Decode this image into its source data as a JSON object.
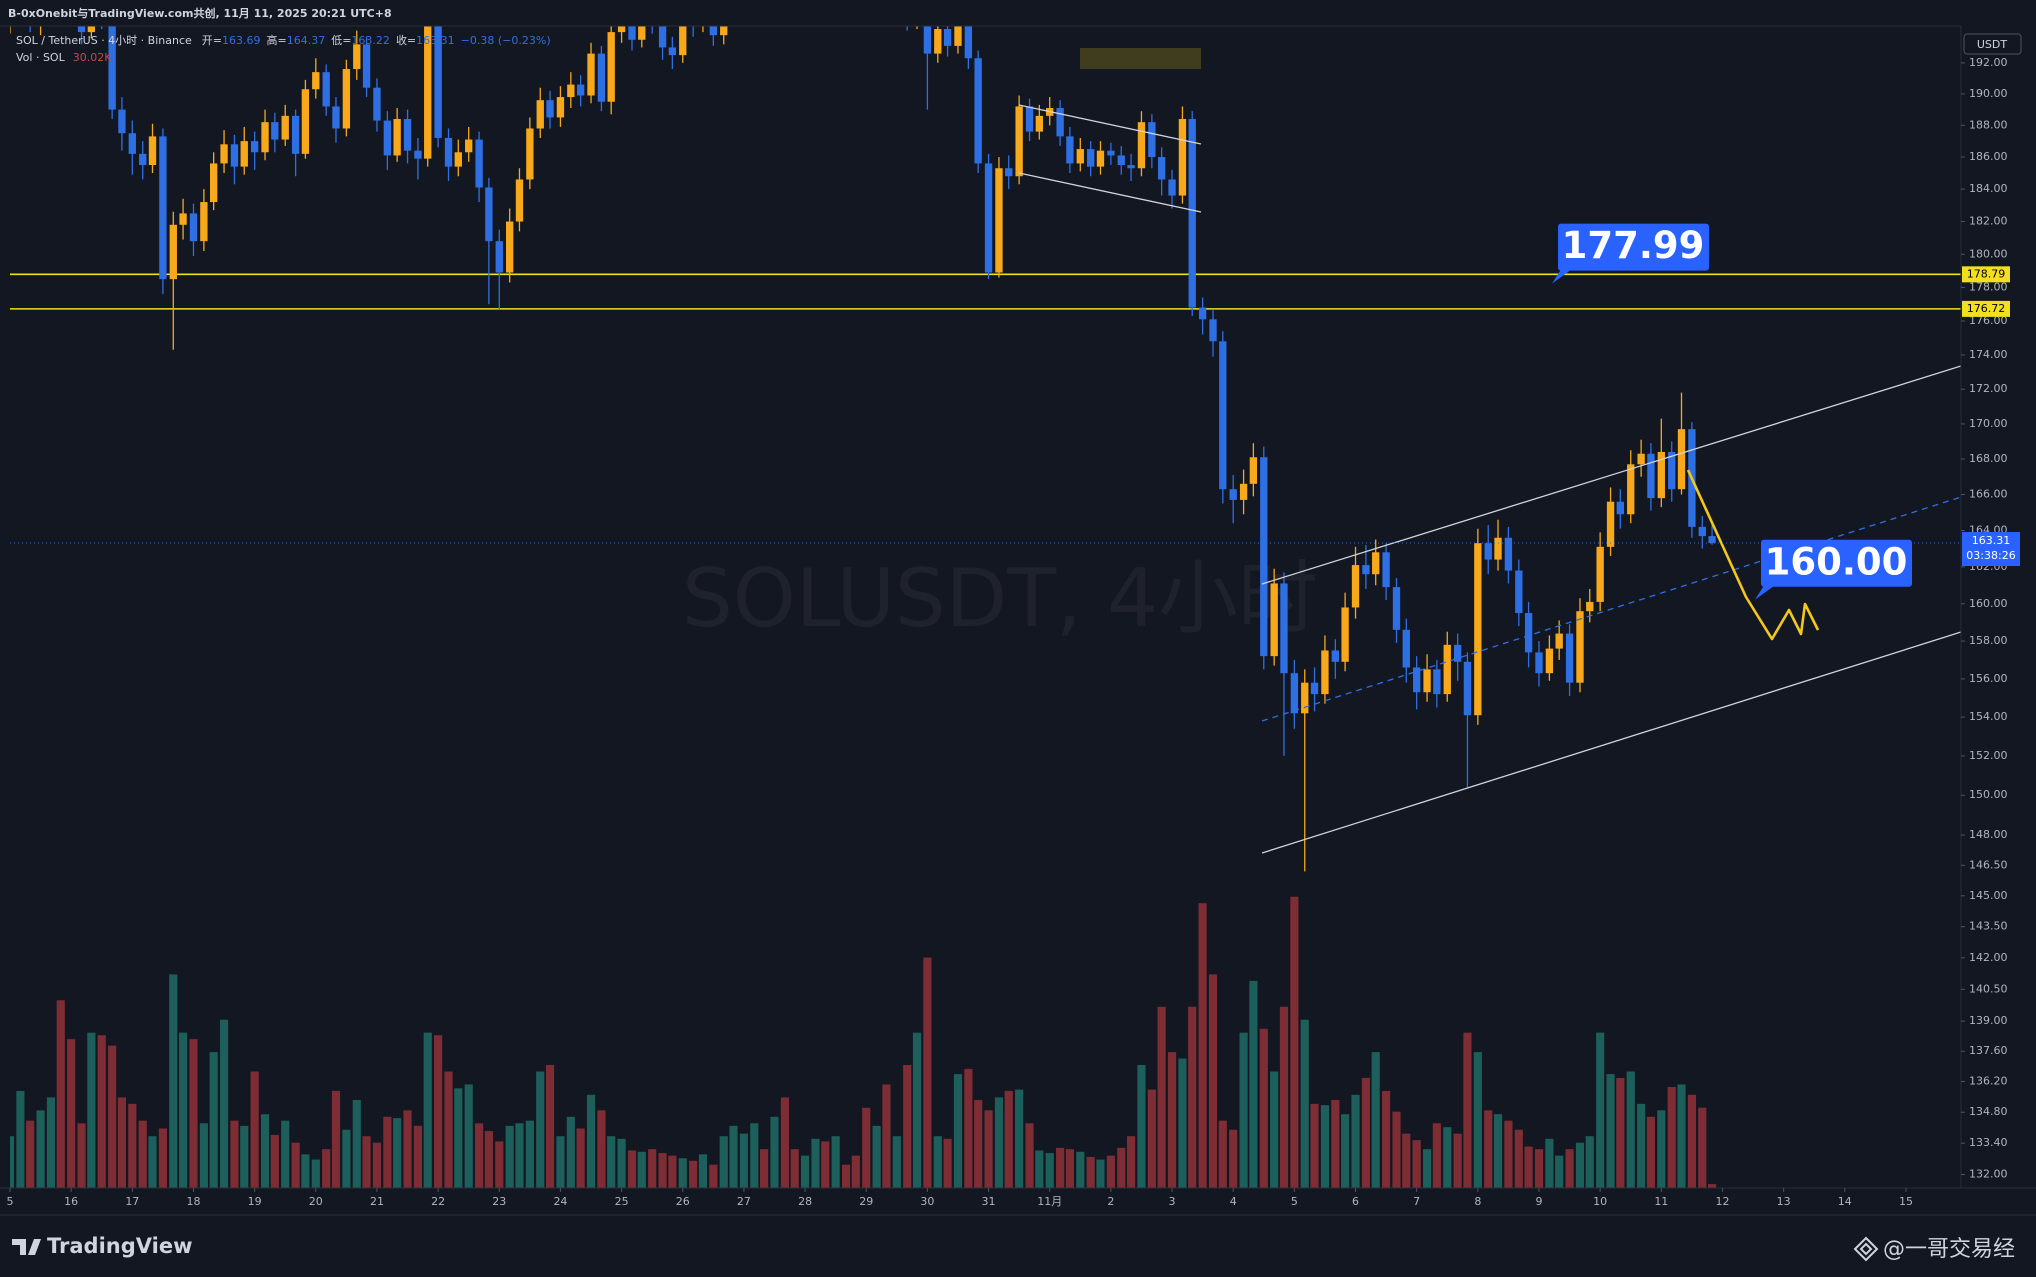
{
  "header": {
    "attribution": "B-0xOnebit与TradingView.com共创, 11月 11, 2025 20:21 UTC+8",
    "symbol": "SOL / TetherUS · 4小时 · Binance",
    "ohlc": [
      "开=",
      "163.69",
      "高=",
      "164.37",
      "低=",
      "163.22",
      "收=",
      "163.31",
      "−0.38 (−0.23%)"
    ],
    "volume_legend": "Vol · SOL",
    "volume_last": "30.02K"
  },
  "footer": {
    "brand": "TradingView",
    "author": "@一哥交易经"
  },
  "chart_data": {
    "type": "candlestick",
    "log_scale": true,
    "grid": false,
    "currency": "USDT",
    "watermark": "SOLUSDT, 4小时",
    "countdown": "03:38:26",
    "up_color": "#f7a81b",
    "down_color": "#2f6fe4",
    "volume_up_color": "#1d5f5b",
    "volume_down_color": "#7e2d35",
    "level_color": "#f2e01e",
    "levels": [
      178.79,
      176.72
    ],
    "annotations": [
      {
        "value": 177.99,
        "label": "177.99"
      },
      {
        "value": 160,
        "label": "160.00"
      }
    ],
    "last_price": 163.31,
    "ylim": [
      131.4,
      194.4
    ],
    "yticks": [
      {
        "value": 192,
        "label": "192.00"
      },
      {
        "value": 190,
        "label": "190.00"
      },
      {
        "value": 188,
        "label": "188.00"
      },
      {
        "value": 186,
        "label": "186.00"
      },
      {
        "value": 184,
        "label": "184.00"
      },
      {
        "value": 182,
        "label": "182.00"
      },
      {
        "value": 180,
        "label": "180.00"
      },
      {
        "value": 178,
        "label": "178.00"
      },
      {
        "value": 176,
        "label": "176.00"
      },
      {
        "value": 174,
        "label": "174.00"
      },
      {
        "value": 172,
        "label": "172.00"
      },
      {
        "value": 170,
        "label": "170.00"
      },
      {
        "value": 168,
        "label": "168.00"
      },
      {
        "value": 166,
        "label": "166.00"
      },
      {
        "value": 164,
        "label": "164.00"
      },
      {
        "value": 162,
        "label": "162.00"
      },
      {
        "value": 160,
        "label": "160.00"
      },
      {
        "value": 158,
        "label": "158.00"
      },
      {
        "value": 156,
        "label": "156.00"
      },
      {
        "value": 154,
        "label": "154.00"
      },
      {
        "value": 152,
        "label": "152.00"
      },
      {
        "value": 150,
        "label": "150.00"
      },
      {
        "value": 148,
        "label": "148.00"
      },
      {
        "value": 146.5,
        "label": "146.50"
      },
      {
        "value": 145,
        "label": "145.00"
      },
      {
        "value": 143.5,
        "label": "143.50"
      },
      {
        "value": 142,
        "label": "142.00"
      },
      {
        "value": 140.5,
        "label": "140.50"
      },
      {
        "value": 139,
        "label": "139.00"
      },
      {
        "value": 137.6,
        "label": "137.60"
      },
      {
        "value": 136.2,
        "label": "136.20"
      },
      {
        "value": 134.8,
        "label": "134.80"
      },
      {
        "value": 133.4,
        "label": "133.40"
      },
      {
        "value": 132,
        "label": "132.00"
      }
    ],
    "xlim": [
      0,
      31.9
    ],
    "xticks": [
      {
        "value": 0,
        "label": "5"
      },
      {
        "value": 1,
        "label": "16"
      },
      {
        "value": 2,
        "label": "17"
      },
      {
        "value": 3,
        "label": "18"
      },
      {
        "value": 4,
        "label": "19"
      },
      {
        "value": 5,
        "label": "20"
      },
      {
        "value": 6,
        "label": "21"
      },
      {
        "value": 7,
        "label": "22"
      },
      {
        "value": 8,
        "label": "23"
      },
      {
        "value": 9,
        "label": "24"
      },
      {
        "value": 10,
        "label": "25"
      },
      {
        "value": 11,
        "label": "26"
      },
      {
        "value": 12,
        "label": "27"
      },
      {
        "value": 13,
        "label": "28"
      },
      {
        "value": 14,
        "label": "29"
      },
      {
        "value": 15,
        "label": "30"
      },
      {
        "value": 16,
        "label": "31"
      },
      {
        "value": 17,
        "label": "11月"
      },
      {
        "value": 18,
        "label": "2"
      },
      {
        "value": 19,
        "label": "3"
      },
      {
        "value": 20,
        "label": "4"
      },
      {
        "value": 21,
        "label": "5"
      },
      {
        "value": 22,
        "label": "6"
      },
      {
        "value": 23,
        "label": "7"
      },
      {
        "value": 24,
        "label": "8"
      },
      {
        "value": 25,
        "label": "9"
      },
      {
        "value": 26,
        "label": "10"
      },
      {
        "value": 27,
        "label": "11"
      },
      {
        "value": 28,
        "label": "12"
      },
      {
        "value": 29,
        "label": "13"
      },
      {
        "value": 30,
        "label": "14"
      },
      {
        "value": 31,
        "label": "15"
      }
    ],
    "x": [
      0,
      0.17,
      0.33,
      0.5,
      0.67,
      0.83,
      1,
      1.17,
      1.33,
      1.5,
      1.67,
      1.83,
      2,
      2.17,
      2.33,
      2.5,
      2.67,
      2.83,
      3,
      3.17,
      3.33,
      3.5,
      3.67,
      3.83,
      4,
      4.17,
      4.33,
      4.5,
      4.67,
      4.83,
      5,
      5.17,
      5.33,
      5.5,
      5.67,
      5.83,
      6,
      6.17,
      6.33,
      6.5,
      6.67,
      6.83,
      7,
      7.17,
      7.33,
      7.5,
      7.67,
      7.83,
      8,
      8.17,
      8.33,
      8.5,
      8.67,
      8.83,
      9,
      9.17,
      9.33,
      9.5,
      9.67,
      9.83,
      10,
      10.17,
      10.33,
      10.5,
      10.67,
      10.83,
      11,
      11.17,
      11.33,
      11.5,
      11.67,
      11.83,
      12,
      12.17,
      12.33,
      12.5,
      12.67,
      12.83,
      13,
      13.17,
      13.33,
      13.5,
      13.67,
      13.83,
      14,
      14.17,
      14.33,
      14.5,
      14.67,
      14.83,
      15,
      15.17,
      15.33,
      15.5,
      15.67,
      15.83,
      16,
      16.17,
      16.33,
      16.5,
      16.67,
      16.83,
      17,
      17.17,
      17.33,
      17.5,
      17.67,
      17.83,
      18,
      18.17,
      18.33,
      18.5,
      18.67,
      18.83,
      19,
      19.17,
      19.33,
      19.5,
      19.67,
      19.83,
      20,
      20.17,
      20.33,
      20.5,
      20.67,
      20.83,
      21,
      21.17,
      21.33,
      21.5,
      21.67,
      21.83,
      22,
      22.17,
      22.33,
      22.5,
      22.67,
      22.83,
      23,
      23.17,
      23.33,
      23.5,
      23.67,
      23.83,
      24,
      24.17,
      24.33,
      24.5,
      24.67,
      24.83,
      25,
      25.17,
      25.33,
      25.5,
      25.67,
      25.83,
      26,
      26.17,
      26.33,
      26.5,
      26.67,
      26.83,
      27,
      27.17,
      27.33,
      27.5,
      27.67,
      27.83
    ],
    "open": [
      194.5,
      195,
      196,
      194.5,
      195.5,
      197,
      196,
      195,
      194,
      196,
      195,
      189,
      187.5,
      186.2,
      185.5,
      187.3,
      178.5,
      181.8,
      182.5,
      180.8,
      183.2,
      185.6,
      186.8,
      185.4,
      187,
      186.3,
      188.2,
      187.1,
      188.6,
      186.2,
      190.3,
      191.4,
      189.2,
      187.8,
      191.6,
      193.2,
      190.4,
      188.3,
      186.1,
      188.4,
      186.4,
      185.9,
      194.5,
      187.2,
      185.4,
      186.3,
      187.1,
      184.1,
      180.8,
      178.9,
      182,
      184.6,
      187.8,
      189.6,
      188.5,
      189.8,
      190.6,
      189.9,
      192.6,
      189.5,
      194,
      195,
      193.5,
      195.5,
      194.5,
      193,
      192.5,
      195.5,
      194.5,
      196,
      193.8,
      195,
      196.5,
      197,
      198,
      197.5,
      199,
      198,
      197,
      198,
      199,
      197.5,
      198.5,
      197,
      196,
      195.2,
      195.8,
      195.4,
      196,
      194.8,
      195.5,
      192.6,
      194.2,
      193.1,
      195,
      192.3,
      185.6,
      178.9,
      185.3,
      184.8,
      189.2,
      187.6,
      188.6,
      189.1,
      187.3,
      185.6,
      186.5,
      185.4,
      186.4,
      186.1,
      185.5,
      185.3,
      188.2,
      186,
      184.6,
      183.6,
      188.4,
      176.8,
      176.1,
      174.8,
      166.3,
      165.7,
      166.6,
      168.1,
      157.2,
      161.1,
      156.3,
      154.2,
      155.8,
      155.2,
      157.5,
      156.9,
      159.8,
      162.1,
      161.6,
      162.8,
      160.9,
      158.6,
      156.6,
      155.3,
      156.5,
      155.2,
      157.8,
      156.9,
      154.1,
      163.3,
      162.4,
      163.6,
      161.8,
      159.5,
      157.4,
      156.3,
      157.6,
      158.4,
      155.8,
      159.6,
      160.1,
      163.1,
      165.6,
      164.9,
      167.7,
      168.3,
      165.8,
      168.4,
      166.3,
      169.7,
      164.2,
      163.69
    ],
    "high": [
      195.8,
      196.7,
      196.4,
      196.1,
      197.6,
      197.8,
      196.6,
      195.7,
      196.8,
      196.5,
      195.6,
      189.8,
      188.3,
      187,
      188.1,
      187.8,
      182.6,
      183.4,
      183.1,
      184,
      186.3,
      187.7,
      187.4,
      187.9,
      187.6,
      189,
      188.8,
      189.3,
      189,
      190.9,
      192.3,
      191.9,
      189.8,
      192.2,
      194.1,
      193.7,
      191,
      188.9,
      189.1,
      189,
      187.2,
      195.3,
      195,
      187.8,
      187.1,
      187.9,
      187.6,
      184.7,
      181.5,
      182.8,
      185.3,
      188.5,
      190.4,
      190.2,
      190.5,
      191.4,
      191.2,
      193.3,
      193.1,
      194.8,
      195.8,
      195.6,
      196.2,
      196.1,
      195,
      193.7,
      196.1,
      196,
      196.8,
      196.5,
      195.7,
      197.2,
      197.9,
      198.8,
      198.6,
      199.7,
      199.6,
      198.5,
      198.7,
      199.8,
      199.5,
      199.2,
      199,
      197.6,
      196.7,
      196.5,
      196.4,
      196.8,
      196.5,
      196.2,
      196,
      195,
      194.8,
      195.8,
      195.5,
      192.8,
      186.2,
      186,
      186.1,
      189.9,
      189.7,
      189.3,
      189.8,
      189.6,
      187.9,
      187.2,
      187,
      187,
      186.9,
      186.7,
      186.2,
      188.9,
      188.7,
      186.6,
      185.2,
      189.2,
      188.9,
      177.4,
      176.7,
      175.4,
      167.1,
      167.4,
      168.9,
      168.7,
      161.9,
      161.7,
      157,
      156.5,
      156.6,
      158.3,
      158.1,
      160.6,
      163.1,
      163.2,
      163.5,
      163.3,
      161.4,
      159.2,
      157.2,
      157.3,
      157,
      158.5,
      158.4,
      157.4,
      164.1,
      164.3,
      164.6,
      164.2,
      162.4,
      160.1,
      158,
      158.3,
      159.1,
      158.9,
      160.3,
      160.8,
      163.9,
      166.4,
      166.3,
      168.5,
      169.1,
      168.9,
      170.3,
      169,
      171.8,
      170.1,
      164.8,
      164.37
    ],
    "low": [
      193.9,
      194.6,
      194,
      193.8,
      195,
      195.4,
      194.4,
      193.2,
      193.6,
      194.2,
      188.4,
      186.4,
      184.9,
      184.6,
      185,
      177.6,
      174.3,
      180.9,
      179.9,
      180.2,
      182.7,
      185,
      184.3,
      184.9,
      185.2,
      185.8,
      186.3,
      186.7,
      184.8,
      185.9,
      189.7,
      188.6,
      186.9,
      187.3,
      190.9,
      189.8,
      187.6,
      185.2,
      185.7,
      185.6,
      184.6,
      185.4,
      186.6,
      184.5,
      184.8,
      185.7,
      183.2,
      177,
      176.7,
      178.3,
      181.4,
      184,
      187.2,
      187.8,
      187.9,
      189.1,
      189.2,
      189.4,
      188.9,
      188.7,
      193.3,
      192.8,
      193,
      193.9,
      192.2,
      191.6,
      192,
      193.7,
      194,
      193.1,
      193.2,
      194.5,
      195.9,
      196.4,
      196.8,
      197,
      197.4,
      196.3,
      196.5,
      197.6,
      196.9,
      197,
      196.4,
      195.3,
      194.6,
      194.7,
      194.8,
      194.9,
      194.1,
      194.2,
      189,
      192,
      192.4,
      192.6,
      191.6,
      185,
      178.5,
      178.6,
      184,
      184.3,
      187,
      187.1,
      188,
      186.7,
      185,
      185.1,
      184.8,
      184.9,
      185.5,
      184.9,
      184.5,
      184.8,
      185.3,
      183.6,
      182.8,
      183.1,
      176.3,
      175.2,
      173.9,
      165.5,
      164.4,
      164.9,
      165.9,
      156.5,
      156.7,
      152,
      153.4,
      146.2,
      154.3,
      154.7,
      156,
      156.4,
      159.2,
      160.8,
      161,
      160.2,
      157.9,
      155.8,
      154.4,
      154.8,
      154.5,
      154.8,
      155.9,
      150.4,
      153.6,
      161.6,
      161.8,
      161.1,
      158.8,
      156.6,
      155.6,
      155.9,
      157,
      155.1,
      155.3,
      159,
      159.6,
      162.6,
      164.1,
      164.4,
      167,
      165.1,
      165.3,
      165.6,
      166,
      163.6,
      163,
      163.22
    ],
    "close": [
      195,
      196,
      194.5,
      195.5,
      197,
      196,
      195,
      194,
      196,
      195,
      189,
      187.5,
      186.2,
      185.5,
      187.3,
      178.5,
      181.8,
      182.5,
      180.8,
      183.2,
      185.6,
      186.8,
      185.4,
      187,
      186.3,
      188.2,
      187.1,
      188.6,
      186.2,
      190.3,
      191.4,
      189.2,
      187.8,
      191.6,
      193.2,
      190.4,
      188.3,
      186.1,
      188.4,
      186.4,
      185.9,
      194.5,
      187.2,
      185.4,
      186.3,
      187.1,
      184.1,
      180.8,
      178.9,
      182,
      184.6,
      187.8,
      189.6,
      188.5,
      189.8,
      190.6,
      189.9,
      192.6,
      189.5,
      194,
      195,
      193.5,
      195.5,
      194.5,
      193,
      192.5,
      195.5,
      194.5,
      196,
      193.8,
      195,
      196.5,
      197,
      198,
      197.5,
      199,
      198,
      197,
      198,
      199,
      197.5,
      198.5,
      197,
      196,
      195.2,
      195.8,
      195.4,
      196,
      194.8,
      195.5,
      192.6,
      194.2,
      193.1,
      195,
      192.3,
      185.6,
      178.9,
      185.3,
      184.8,
      189.2,
      187.6,
      188.6,
      189.1,
      187.3,
      185.6,
      186.5,
      185.4,
      186.4,
      186.1,
      185.5,
      185.3,
      188.2,
      186,
      184.6,
      183.6,
      188.4,
      176.8,
      176.1,
      174.8,
      166.3,
      165.7,
      166.6,
      168.1,
      157.2,
      161.1,
      156.3,
      154.2,
      155.8,
      155.2,
      157.5,
      156.9,
      159.8,
      162.1,
      161.6,
      162.8,
      160.9,
      158.6,
      156.6,
      155.3,
      156.5,
      155.2,
      157.8,
      156.9,
      154.1,
      163.3,
      162.4,
      163.6,
      161.8,
      159.5,
      157.4,
      156.3,
      157.6,
      158.4,
      155.8,
      159.6,
      160.1,
      163.1,
      165.6,
      164.9,
      167.7,
      168.3,
      165.8,
      168.4,
      166.3,
      169.7,
      164.2,
      163.69,
      163.31
    ],
    "volume": [
      400,
      750,
      520,
      600,
      700,
      1450,
      1150,
      500,
      1200,
      1180,
      1100,
      700,
      650,
      520,
      400,
      460,
      1650,
      1200,
      1150,
      500,
      1050,
      1300,
      520,
      480,
      900,
      570,
      410,
      520,
      350,
      260,
      220,
      300,
      750,
      450,
      680,
      400,
      350,
      550,
      540,
      600,
      480,
      1200,
      1180,
      900,
      770,
      800,
      500,
      440,
      360,
      480,
      500,
      520,
      900,
      950,
      400,
      550,
      460,
      720,
      600,
      400,
      380,
      290,
      280,
      300,
      270,
      250,
      230,
      210,
      260,
      180,
      400,
      480,
      420,
      500,
      300,
      550,
      700,
      300,
      250,
      380,
      360,
      400,
      180,
      250,
      620,
      480,
      800,
      400,
      950,
      1200,
      1780,
      400,
      380,
      880,
      920,
      680,
      600,
      700,
      750,
      760,
      500,
      290,
      270,
      310,
      300,
      280,
      240,
      220,
      250,
      310,
      400,
      950,
      760,
      1400,
      1050,
      1000,
      1400,
      2200,
      1650,
      520,
      450,
      1200,
      1600,
      1230,
      900,
      1400,
      2250,
      1300,
      650,
      640,
      680,
      570,
      720,
      850,
      1050,
      750,
      590,
      420,
      370,
      300,
      500,
      470,
      420,
      1200,
      1050,
      600,
      570,
      520,
      450,
      320,
      300,
      380,
      250,
      300,
      350,
      400,
      1200,
      880,
      850,
      900,
      650,
      550,
      600,
      780,
      800,
      720,
      620,
      30.02
    ]
  }
}
